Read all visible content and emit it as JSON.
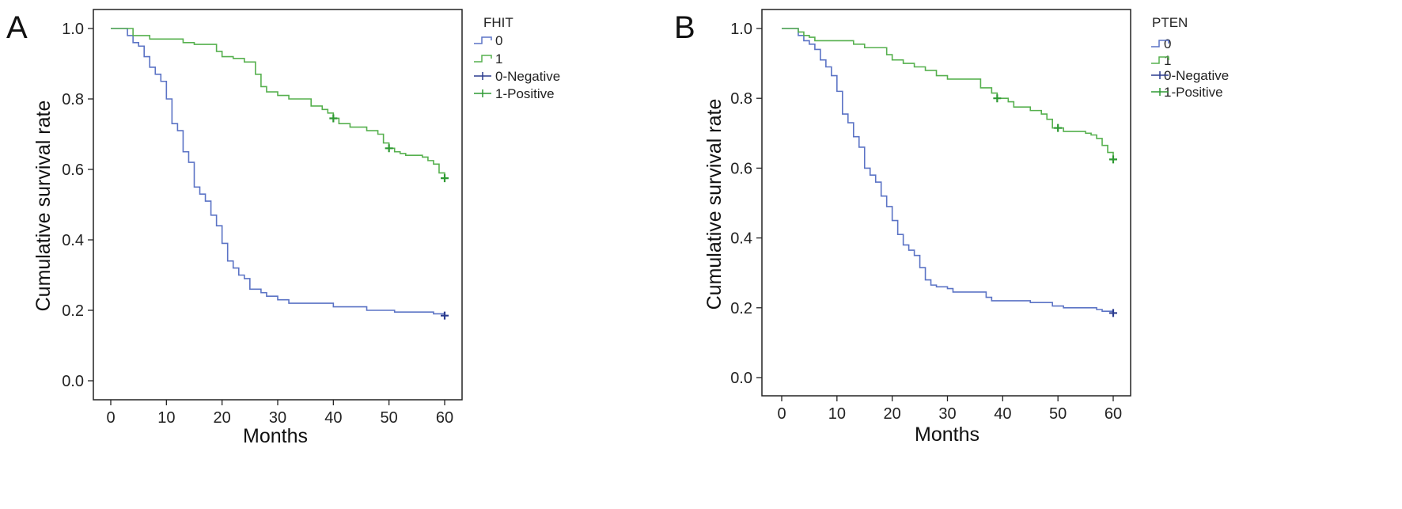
{
  "chart_data": [
    {
      "type": "line",
      "panel": "A",
      "xlabel": "Months",
      "ylabel": "Cumulative survival rate",
      "xlim": [
        0,
        60
      ],
      "ylim": [
        0,
        1.0
      ],
      "x_ticks": [
        0,
        10,
        20,
        30,
        40,
        50,
        60
      ],
      "y_ticks": [
        0.0,
        0.2,
        0.4,
        0.6,
        0.8,
        1.0
      ],
      "grid": false,
      "legend": {
        "title": "FHIT",
        "placement": "top-right-outside",
        "entries": [
          "0",
          "1",
          "0-Negative",
          "1-Positive"
        ]
      },
      "series": [
        {
          "name": "0",
          "color": "#5b73c5",
          "censor_color": "#2b3c8f",
          "steps": [
            [
              0,
              1.0
            ],
            [
              3,
              0.98
            ],
            [
              4,
              0.96
            ],
            [
              5,
              0.95
            ],
            [
              6,
              0.92
            ],
            [
              7,
              0.89
            ],
            [
              8,
              0.87
            ],
            [
              9,
              0.85
            ],
            [
              10,
              0.8
            ],
            [
              11,
              0.73
            ],
            [
              12,
              0.71
            ],
            [
              13,
              0.65
            ],
            [
              14,
              0.62
            ],
            [
              15,
              0.55
            ],
            [
              16,
              0.53
            ],
            [
              17,
              0.51
            ],
            [
              18,
              0.47
            ],
            [
              19,
              0.44
            ],
            [
              20,
              0.39
            ],
            [
              21,
              0.34
            ],
            [
              22,
              0.32
            ],
            [
              23,
              0.3
            ],
            [
              24,
              0.29
            ],
            [
              25,
              0.26
            ],
            [
              27,
              0.25
            ],
            [
              28,
              0.24
            ],
            [
              30,
              0.23
            ],
            [
              32,
              0.22
            ],
            [
              40,
              0.21
            ],
            [
              46,
              0.2
            ],
            [
              51,
              0.195
            ],
            [
              58,
              0.19
            ],
            [
              60,
              0.185
            ]
          ],
          "censor": [
            [
              60,
              0.185
            ]
          ]
        },
        {
          "name": "1",
          "color": "#56b04e",
          "censor_color": "#2e9a33",
          "steps": [
            [
              0,
              1.0
            ],
            [
              4,
              0.98
            ],
            [
              7,
              0.97
            ],
            [
              13,
              0.96
            ],
            [
              15,
              0.955
            ],
            [
              19,
              0.935
            ],
            [
              20,
              0.92
            ],
            [
              22,
              0.915
            ],
            [
              24,
              0.905
            ],
            [
              26,
              0.87
            ],
            [
              27,
              0.835
            ],
            [
              28,
              0.82
            ],
            [
              30,
              0.81
            ],
            [
              32,
              0.8
            ],
            [
              36,
              0.78
            ],
            [
              38,
              0.77
            ],
            [
              39,
              0.76
            ],
            [
              40,
              0.745
            ],
            [
              41,
              0.73
            ],
            [
              43,
              0.72
            ],
            [
              46,
              0.71
            ],
            [
              48,
              0.7
            ],
            [
              49,
              0.675
            ],
            [
              50,
              0.66
            ],
            [
              51,
              0.65
            ],
            [
              52,
              0.645
            ],
            [
              53,
              0.64
            ],
            [
              56,
              0.635
            ],
            [
              57,
              0.625
            ],
            [
              58,
              0.615
            ],
            [
              59,
              0.59
            ],
            [
              60,
              0.575
            ]
          ],
          "censor": [
            [
              40,
              0.745
            ],
            [
              50,
              0.66
            ],
            [
              60,
              0.575
            ]
          ]
        }
      ]
    },
    {
      "type": "line",
      "panel": "B",
      "xlabel": "Months",
      "ylabel": "Cumulative survival rate",
      "xlim": [
        0,
        60
      ],
      "ylim": [
        0,
        1.0
      ],
      "x_ticks": [
        0,
        10,
        20,
        30,
        40,
        50,
        60
      ],
      "y_ticks": [
        0.0,
        0.2,
        0.4,
        0.6,
        0.8,
        1.0
      ],
      "grid": false,
      "legend": {
        "title": "PTEN",
        "placement": "top-right-outside",
        "entries": [
          "0",
          "1",
          "0-Negative",
          "1-Positive"
        ]
      },
      "series": [
        {
          "name": "0",
          "color": "#5b73c5",
          "censor_color": "#2b3c8f",
          "steps": [
            [
              0,
              1.0
            ],
            [
              3,
              0.98
            ],
            [
              4,
              0.965
            ],
            [
              5,
              0.955
            ],
            [
              6,
              0.94
            ],
            [
              7,
              0.91
            ],
            [
              8,
              0.89
            ],
            [
              9,
              0.865
            ],
            [
              10,
              0.82
            ],
            [
              11,
              0.755
            ],
            [
              12,
              0.73
            ],
            [
              13,
              0.69
            ],
            [
              14,
              0.66
            ],
            [
              15,
              0.6
            ],
            [
              16,
              0.58
            ],
            [
              17,
              0.56
            ],
            [
              18,
              0.52
            ],
            [
              19,
              0.49
            ],
            [
              20,
              0.45
            ],
            [
              21,
              0.41
            ],
            [
              22,
              0.38
            ],
            [
              23,
              0.365
            ],
            [
              24,
              0.35
            ],
            [
              25,
              0.315
            ],
            [
              26,
              0.28
            ],
            [
              27,
              0.265
            ],
            [
              28,
              0.26
            ],
            [
              30,
              0.255
            ],
            [
              31,
              0.245
            ],
            [
              37,
              0.23
            ],
            [
              38,
              0.22
            ],
            [
              45,
              0.215
            ],
            [
              49,
              0.205
            ],
            [
              51,
              0.2
            ],
            [
              57,
              0.195
            ],
            [
              58,
              0.19
            ],
            [
              60,
              0.185
            ]
          ],
          "censor": [
            [
              60,
              0.185
            ]
          ]
        },
        {
          "name": "1",
          "color": "#56b04e",
          "censor_color": "#2e9a33",
          "steps": [
            [
              0,
              1.0
            ],
            [
              3,
              0.99
            ],
            [
              4,
              0.98
            ],
            [
              5,
              0.975
            ],
            [
              6,
              0.965
            ],
            [
              13,
              0.955
            ],
            [
              15,
              0.945
            ],
            [
              19,
              0.925
            ],
            [
              20,
              0.91
            ],
            [
              22,
              0.9
            ],
            [
              24,
              0.89
            ],
            [
              26,
              0.88
            ],
            [
              28,
              0.865
            ],
            [
              30,
              0.855
            ],
            [
              36,
              0.83
            ],
            [
              38,
              0.815
            ],
            [
              39,
              0.8
            ],
            [
              41,
              0.79
            ],
            [
              42,
              0.775
            ],
            [
              45,
              0.765
            ],
            [
              47,
              0.755
            ],
            [
              48,
              0.74
            ],
            [
              49,
              0.715
            ],
            [
              51,
              0.705
            ],
            [
              55,
              0.7
            ],
            [
              56,
              0.695
            ],
            [
              57,
              0.685
            ],
            [
              58,
              0.665
            ],
            [
              59,
              0.645
            ],
            [
              60,
              0.625
            ]
          ],
          "censor": [
            [
              39,
              0.8
            ],
            [
              50,
              0.715
            ],
            [
              60,
              0.625
            ]
          ]
        }
      ]
    }
  ]
}
